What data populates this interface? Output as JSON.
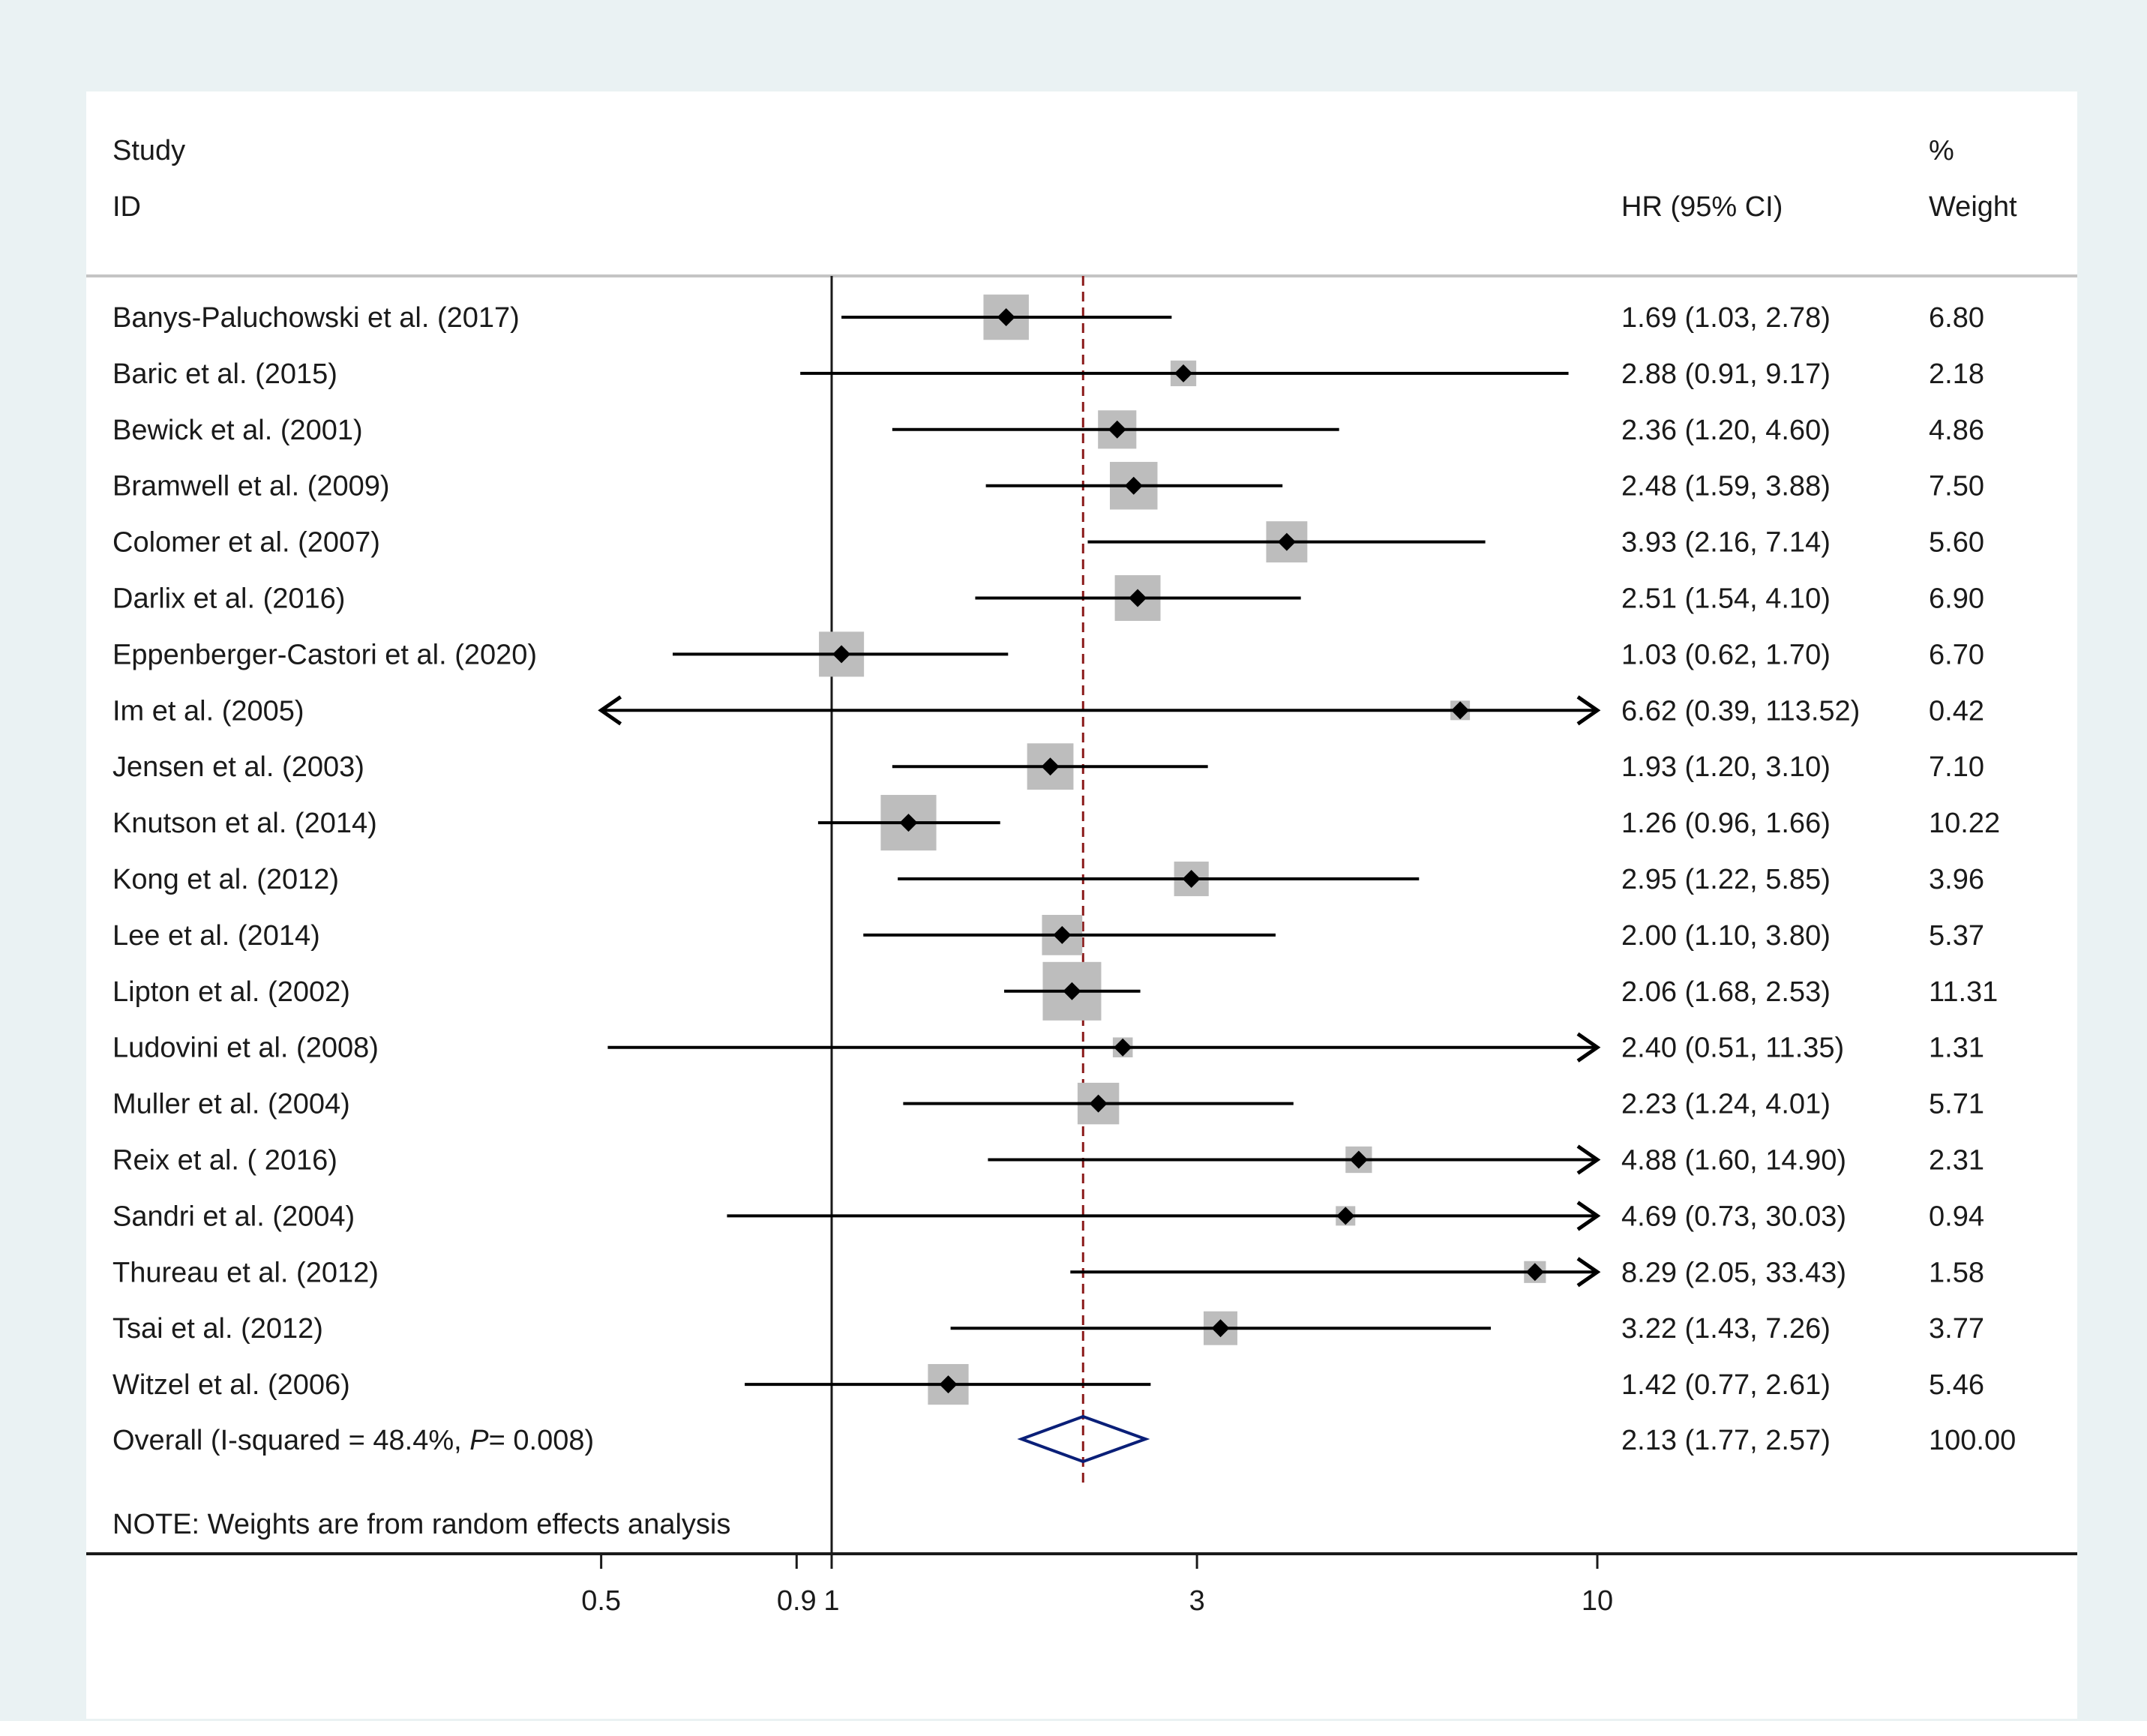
{
  "chart_data": {
    "type": "forest",
    "scale": "log",
    "header": {
      "study_label": "Study",
      "id_label": "ID",
      "estimate_label": "HR (95% CI)",
      "weight_label_top": "%",
      "weight_label": "Weight"
    },
    "studies": [
      {
        "name": "Banys-Paluchowski et al. (2017)",
        "hr": 1.69,
        "lower": 1.03,
        "upper": 2.78,
        "ci_text": "1.69 (1.03, 2.78)",
        "weight": 6.8,
        "weight_text": "6.80"
      },
      {
        "name": "Baric et al. (2015)",
        "hr": 2.88,
        "lower": 0.91,
        "upper": 9.17,
        "ci_text": "2.88 (0.91, 9.17)",
        "weight": 2.18,
        "weight_text": "2.18"
      },
      {
        "name": "Bewick et al. (2001)",
        "hr": 2.36,
        "lower": 1.2,
        "upper": 4.6,
        "ci_text": "2.36 (1.20, 4.60)",
        "weight": 4.86,
        "weight_text": "4.86"
      },
      {
        "name": "Bramwell et al. (2009)",
        "hr": 2.48,
        "lower": 1.59,
        "upper": 3.88,
        "ci_text": "2.48 (1.59, 3.88)",
        "weight": 7.5,
        "weight_text": "7.50"
      },
      {
        "name": "Colomer et al. (2007)",
        "hr": 3.93,
        "lower": 2.16,
        "upper": 7.14,
        "ci_text": "3.93 (2.16, 7.14)",
        "weight": 5.6,
        "weight_text": "5.60"
      },
      {
        "name": "Darlix et al. (2016)",
        "hr": 2.51,
        "lower": 1.54,
        "upper": 4.1,
        "ci_text": "2.51 (1.54, 4.10)",
        "weight": 6.9,
        "weight_text": "6.90"
      },
      {
        "name": "Eppenberger-Castori et al. (2020)",
        "hr": 1.03,
        "lower": 0.62,
        "upper": 1.7,
        "ci_text": "1.03 (0.62, 1.70)",
        "weight": 6.7,
        "weight_text": "6.70"
      },
      {
        "name": "Im et al. (2005)",
        "hr": 6.62,
        "lower": 0.39,
        "upper": 113.52,
        "ci_text": "6.62 (0.39, 113.52)",
        "weight": 0.42,
        "weight_text": "0.42"
      },
      {
        "name": "Jensen et al. (2003)",
        "hr": 1.93,
        "lower": 1.2,
        "upper": 3.1,
        "ci_text": "1.93 (1.20, 3.10)",
        "weight": 7.1,
        "weight_text": "7.10"
      },
      {
        "name": "Knutson et al. (2014)",
        "hr": 1.26,
        "lower": 0.96,
        "upper": 1.66,
        "ci_text": "1.26 (0.96, 1.66)",
        "weight": 10.22,
        "weight_text": "10.22"
      },
      {
        "name": "Kong et al. (2012)",
        "hr": 2.95,
        "lower": 1.22,
        "upper": 5.85,
        "ci_text": "2.95 (1.22, 5.85)",
        "weight": 3.96,
        "weight_text": "3.96"
      },
      {
        "name": "Lee et al. (2014)",
        "hr": 2.0,
        "lower": 1.1,
        "upper": 3.8,
        "ci_text": "2.00 (1.10, 3.80)",
        "weight": 5.37,
        "weight_text": "5.37"
      },
      {
        "name": "Lipton et al. (2002)",
        "hr": 2.06,
        "lower": 1.68,
        "upper": 2.53,
        "ci_text": "2.06 (1.68, 2.53)",
        "weight": 11.31,
        "weight_text": "11.31"
      },
      {
        "name": "Ludovini et al. (2008)",
        "hr": 2.4,
        "lower": 0.51,
        "upper": 11.35,
        "ci_text": "2.40 (0.51, 11.35)",
        "weight": 1.31,
        "weight_text": "1.31"
      },
      {
        "name": "Muller et al. (2004)",
        "hr": 2.23,
        "lower": 1.24,
        "upper": 4.01,
        "ci_text": "2.23 (1.24, 4.01)",
        "weight": 5.71,
        "weight_text": "5.71"
      },
      {
        "name": "Reix et al. ( 2016)",
        "hr": 4.88,
        "lower": 1.6,
        "upper": 14.9,
        "ci_text": "4.88 (1.60, 14.90)",
        "weight": 2.31,
        "weight_text": "2.31"
      },
      {
        "name": "Sandri et al. (2004)",
        "hr": 4.69,
        "lower": 0.73,
        "upper": 30.03,
        "ci_text": "4.69 (0.73, 30.03)",
        "weight": 0.94,
        "weight_text": "0.94"
      },
      {
        "name": "Thureau et al. (2012)",
        "hr": 8.29,
        "lower": 2.05,
        "upper": 33.43,
        "ci_text": "8.29 (2.05, 33.43)",
        "weight": 1.58,
        "weight_text": "1.58"
      },
      {
        "name": "Tsai et al. (2012)",
        "hr": 3.22,
        "lower": 1.43,
        "upper": 7.26,
        "ci_text": "3.22 (1.43, 7.26)",
        "weight": 3.77,
        "weight_text": "3.77"
      },
      {
        "name": "Witzel et al. (2006)",
        "hr": 1.42,
        "lower": 0.77,
        "upper": 2.61,
        "ci_text": "1.42 (0.77, 2.61)",
        "weight": 5.46,
        "weight_text": "5.46"
      }
    ],
    "overall": {
      "label_prefix": "Overall  (I-squared = 48.4%, ",
      "p_symbol": "P",
      "label_suffix": "= 0.008)",
      "hr": 2.13,
      "lower": 1.77,
      "upper": 2.57,
      "ci_text": "2.13 (1.77, 2.57)",
      "weight_text": "100.00"
    },
    "note": "NOTE: Weights are from random effects analysis",
    "xaxis": {
      "ticks": [
        0.5,
        0.9,
        1,
        3,
        10
      ],
      "tick_labels": [
        "0.5",
        "0.9",
        "1",
        "3",
        "10"
      ],
      "range": [
        0.5,
        10
      ],
      "null_line": 1,
      "pooled_line": 2.13
    },
    "colors": {
      "background": "#ffffff",
      "outer_frame": "#eaf2f3",
      "box": "#bdbdbd",
      "pooled_line": "#8b1a1a",
      "diamond": "#0a1f78",
      "text": "#1a1a1a"
    }
  }
}
